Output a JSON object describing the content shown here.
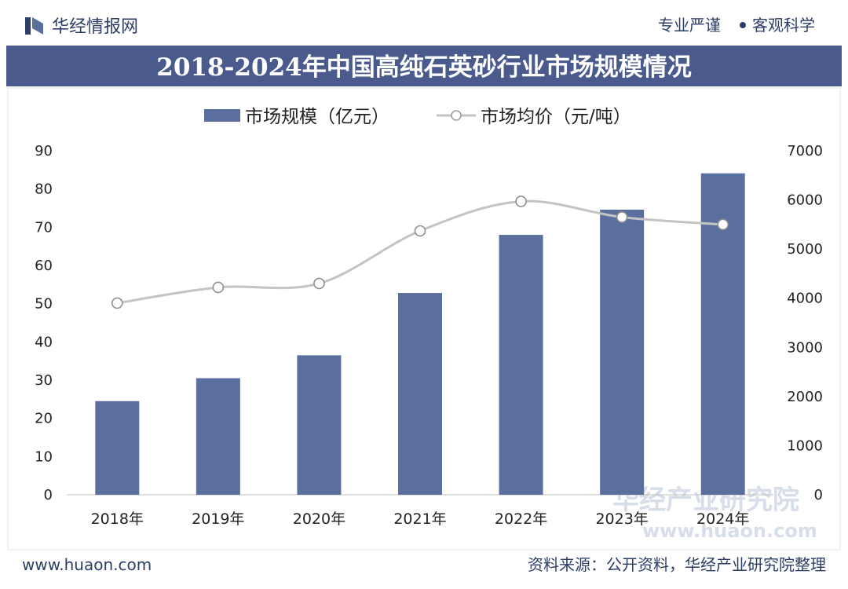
{
  "header": {
    "brand": "华经情报网",
    "tagline_left": "专业严谨",
    "tagline_right": "客观科学"
  },
  "watermark": {
    "cn": "华经产业研究院",
    "url": "www.huaon.com"
  },
  "footer": {
    "website": "www.huaon.com",
    "source": "资料来源：公开资料，华经产业研究院整理"
  },
  "colors": {
    "accent": "#5b6f9e",
    "title_bg": "#4a5a8c",
    "line": "#c4c4c4",
    "text_dark": "#2d3e66"
  },
  "chart_data": {
    "type": "bar",
    "title": "2018-2024年中国高纯石英砂行业市场规模情况",
    "categories": [
      "2018年",
      "2019年",
      "2020年",
      "2021年",
      "2022年",
      "2023年",
      "2024年"
    ],
    "series": [
      {
        "name": "市场规模（亿元）",
        "type": "bar",
        "axis": "left",
        "values": [
          24.5,
          30.5,
          36.5,
          52.8,
          68.0,
          74.6,
          84.1
        ]
      },
      {
        "name": "市场均价（元/吨）",
        "type": "line",
        "axis": "right",
        "values": [
          3900,
          4220,
          4300,
          5370,
          5970,
          5650,
          5500
        ]
      }
    ],
    "y_left": {
      "min": 0,
      "max": 90,
      "ticks": [
        0,
        10,
        20,
        30,
        40,
        50,
        60,
        70,
        80,
        90
      ]
    },
    "y_right": {
      "min": 0,
      "max": 7000,
      "ticks": [
        0,
        1000,
        2000,
        3000,
        4000,
        5000,
        6000,
        7000
      ]
    },
    "legend_position": "top-center",
    "grid": false
  }
}
